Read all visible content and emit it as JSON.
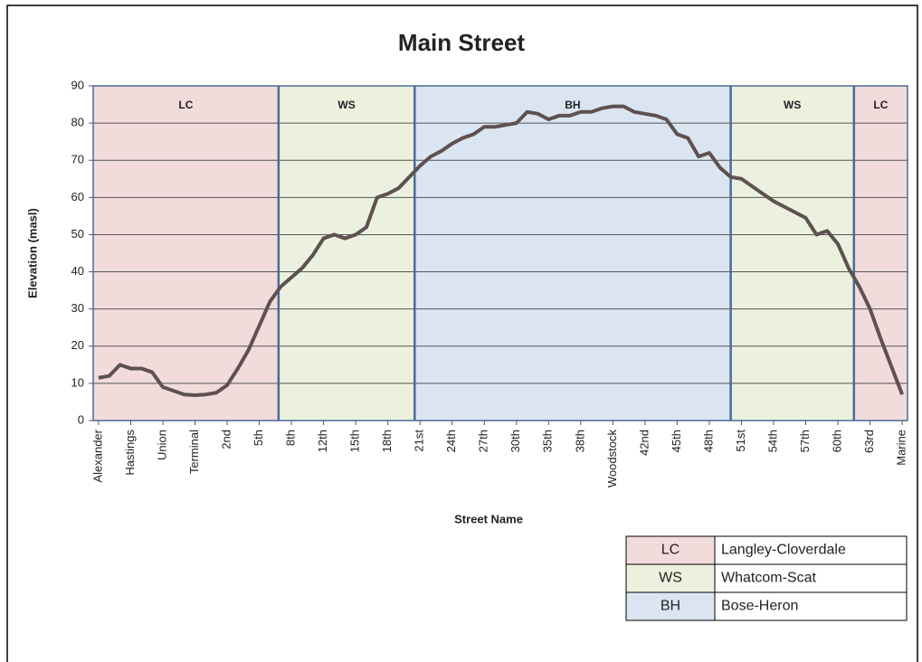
{
  "chart_data": {
    "type": "line",
    "title": "Main Street",
    "x_label": "Street Name",
    "y_label": "Elevation (masl)",
    "categories": [
      "Alexander",
      null,
      null,
      "Hastings",
      null,
      null,
      "Union",
      null,
      null,
      "Terminal",
      null,
      null,
      "2nd",
      null,
      null,
      "5th",
      null,
      null,
      "8th",
      null,
      null,
      "12th",
      null,
      null,
      "15th",
      null,
      null,
      "18th",
      null,
      null,
      "21st",
      null,
      null,
      "24th",
      null,
      null,
      "27th",
      null,
      null,
      "30th",
      null,
      null,
      "35th",
      null,
      null,
      "38th",
      null,
      null,
      "Woodstock",
      null,
      null,
      "42nd",
      null,
      null,
      "45th",
      null,
      null,
      "48th",
      null,
      null,
      "51st",
      null,
      null,
      "54th",
      null,
      null,
      "57th",
      null,
      null,
      "60th",
      null,
      null,
      "63rd",
      null,
      null,
      "Marine"
    ],
    "values": [
      11.5,
      12,
      15,
      14,
      14,
      13,
      9,
      8,
      7,
      6.8,
      7,
      7.5,
      9.5,
      14,
      19,
      25.5,
      32,
      36,
      38.5,
      41,
      44.5,
      49,
      50,
      49,
      50,
      52,
      60,
      61,
      62.5,
      65.5,
      68.5,
      71,
      72.5,
      74.5,
      76,
      77,
      79,
      79,
      79.5,
      80,
      83,
      82.5,
      81,
      82,
      82,
      83,
      83,
      84,
      84.5,
      84.5,
      83,
      82.5,
      82,
      81,
      77,
      76,
      71,
      72,
      68,
      65.5,
      65,
      63,
      61,
      59,
      57.5,
      56,
      54.5,
      50,
      51,
      47.5,
      41,
      36,
      30,
      22,
      14.5,
      7
    ],
    "color": "#5e5151",
    "ylim": [
      0,
      90
    ],
    "yticks": [
      0,
      10,
      20,
      30,
      40,
      50,
      60,
      70,
      80,
      90
    ],
    "grid": true,
    "region_boundaries": [
      16.8,
      29.5,
      59,
      70.5
    ],
    "regions": [
      {
        "label": "LC",
        "color": "#f2dcdb"
      },
      {
        "label": "WS",
        "color": "#ebf1de"
      },
      {
        "label": "BH",
        "color": "#dbe5f1"
      },
      {
        "label": "WS",
        "color": "#ebf1de"
      },
      {
        "label": "LC",
        "color": "#f2dcdb"
      }
    ],
    "legend": [
      {
        "code": "LC",
        "name": "Langley-Cloverdale",
        "color": "#f2dcdb"
      },
      {
        "code": "WS",
        "name": "Whatcom-Scat",
        "color": "#ebf1de"
      },
      {
        "code": "BH",
        "name": "Bose-Heron",
        "color": "#dbe5f1"
      }
    ]
  }
}
